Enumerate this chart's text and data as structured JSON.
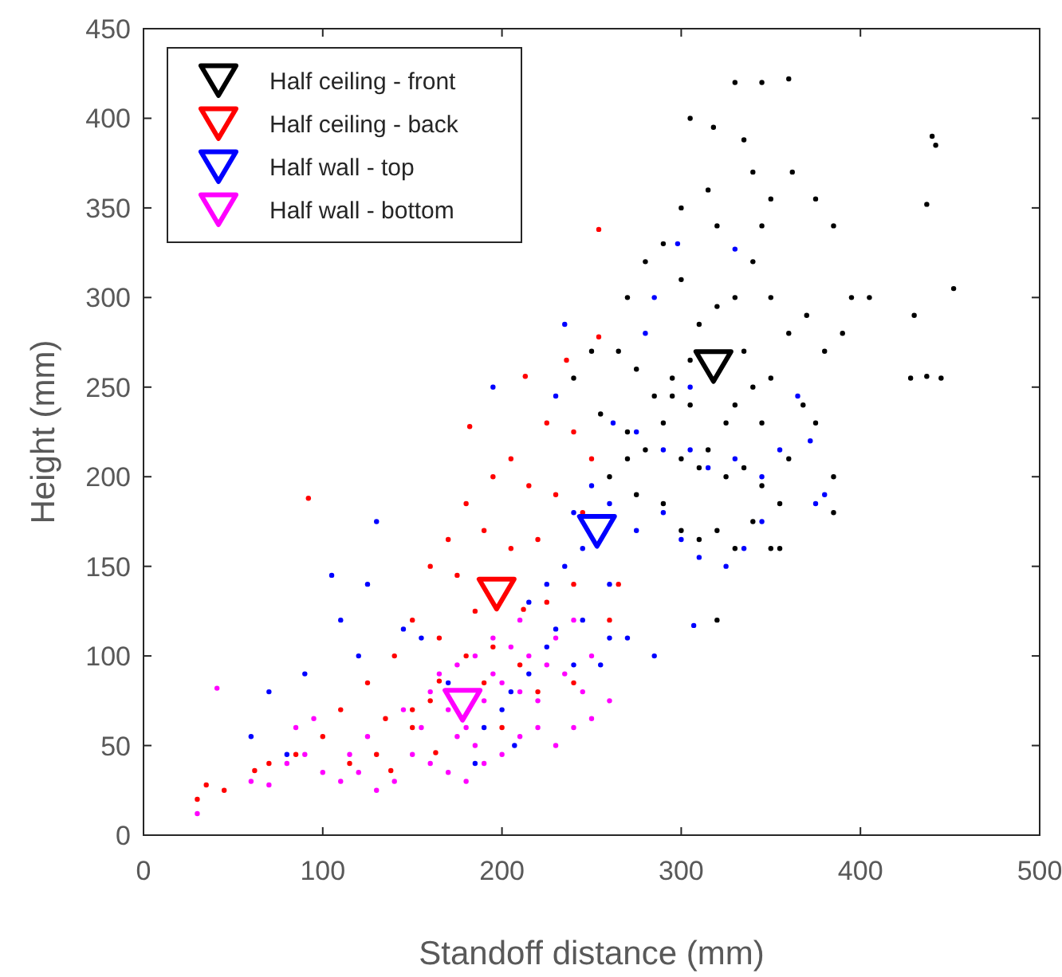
{
  "chart_data": {
    "type": "scatter",
    "xlabel": "Standoff distance (mm)",
    "ylabel": "Height (mm)",
    "xlim": [
      0,
      500
    ],
    "ylim": [
      0,
      450
    ],
    "xticks": [
      0,
      100,
      200,
      300,
      400,
      500
    ],
    "yticks": [
      0,
      50,
      100,
      150,
      200,
      250,
      300,
      350,
      400,
      450
    ],
    "grid": false,
    "legend": "top left",
    "series": [
      {
        "color": "#000000",
        "marker": "circle",
        "x": [
          330,
          345,
          360,
          318,
          335,
          305,
          340,
          362,
          315,
          350,
          375,
          300,
          320,
          345,
          385,
          395,
          405,
          440,
          442,
          437,
          452,
          430,
          437,
          428,
          445,
          270,
          280,
          290,
          300,
          310,
          320,
          330,
          340,
          350,
          360,
          370,
          380,
          390,
          265,
          275,
          285,
          295,
          305,
          330,
          340,
          350,
          368,
          375,
          255,
          270,
          280,
          290,
          300,
          315,
          325,
          335,
          345,
          355,
          360,
          385,
          385,
          260,
          275,
          290,
          300,
          310,
          320,
          330,
          340,
          350,
          355,
          320,
          270,
          240,
          250,
          295,
          305,
          335,
          345,
          310,
          325
        ],
        "values": [
          420,
          420,
          422,
          395,
          388,
          400,
          370,
          370,
          360,
          355,
          355,
          350,
          340,
          340,
          340,
          300,
          300,
          390,
          385,
          352,
          305,
          290,
          256,
          255,
          255,
          300,
          320,
          330,
          310,
          285,
          295,
          300,
          320,
          300,
          280,
          290,
          270,
          280,
          270,
          260,
          245,
          255,
          240,
          240,
          250,
          255,
          240,
          230,
          235,
          225,
          215,
          230,
          210,
          215,
          200,
          205,
          195,
          185,
          210,
          200,
          180,
          200,
          190,
          185,
          170,
          165,
          170,
          160,
          175,
          160,
          160,
          120,
          210,
          255,
          270,
          245,
          265,
          270,
          230,
          205,
          230
        ]
      },
      {
        "color": "#ff0000",
        "marker": "circle",
        "x": [
          254,
          254,
          236,
          213,
          182,
          92,
          225,
          240,
          250,
          205,
          195,
          215,
          230,
          245,
          180,
          170,
          190,
          205,
          220,
          160,
          175,
          185,
          212,
          225,
          240,
          150,
          165,
          180,
          195,
          210,
          220,
          140,
          125,
          110,
          135,
          150,
          160,
          165,
          190,
          100,
          85,
          70,
          62,
          45,
          35,
          30,
          115,
          130,
          240,
          260,
          265,
          150,
          200,
          138,
          163
        ],
        "values": [
          338,
          278,
          265,
          256,
          228,
          188,
          230,
          225,
          210,
          210,
          200,
          195,
          190,
          180,
          185,
          165,
          170,
          160,
          165,
          150,
          145,
          125,
          126,
          130,
          140,
          120,
          110,
          100,
          105,
          95,
          80,
          100,
          85,
          70,
          65,
          60,
          75,
          86,
          85,
          55,
          45,
          40,
          36,
          25,
          28,
          20,
          40,
          45,
          85,
          120,
          140,
          70,
          60,
          36,
          46
        ]
      },
      {
        "color": "#0000ff",
        "marker": "circle",
        "x": [
          195,
          230,
          235,
          298,
          330,
          305,
          280,
          285,
          262,
          275,
          290,
          305,
          315,
          330,
          345,
          355,
          365,
          372,
          380,
          375,
          345,
          335,
          325,
          310,
          300,
          290,
          275,
          260,
          250,
          240,
          245,
          235,
          225,
          215,
          230,
          245,
          260,
          255,
          240,
          225,
          215,
          205,
          200,
          190,
          207,
          170,
          155,
          145,
          125,
          105,
          130,
          110,
          120,
          90,
          70,
          60,
          80,
          185,
          270,
          285,
          260,
          307
        ],
        "values": [
          250,
          245,
          285,
          330,
          327,
          250,
          280,
          300,
          230,
          225,
          215,
          215,
          205,
          210,
          200,
          215,
          245,
          220,
          190,
          185,
          175,
          160,
          150,
          155,
          165,
          180,
          170,
          185,
          195,
          180,
          160,
          150,
          140,
          130,
          115,
          120,
          110,
          95,
          95,
          105,
          90,
          80,
          70,
          60,
          50,
          85,
          110,
          115,
          140,
          145,
          175,
          120,
          100,
          90,
          80,
          55,
          45,
          40,
          110,
          100,
          140,
          117
        ]
      },
      {
        "color": "#ff00ff",
        "marker": "circle",
        "x": [
          41,
          30,
          60,
          70,
          80,
          90,
          95,
          85,
          100,
          110,
          120,
          130,
          140,
          150,
          160,
          170,
          180,
          190,
          200,
          210,
          220,
          230,
          240,
          250,
          245,
          235,
          225,
          215,
          205,
          195,
          185,
          175,
          165,
          160,
          170,
          180,
          190,
          200,
          210,
          220,
          230,
          240,
          250,
          210,
          195,
          185,
          155,
          145,
          125,
          115,
          260,
          175
        ],
        "values": [
          82,
          12,
          30,
          28,
          40,
          45,
          65,
          60,
          35,
          30,
          35,
          25,
          30,
          45,
          40,
          35,
          30,
          40,
          45,
          55,
          60,
          50,
          60,
          65,
          80,
          90,
          95,
          100,
          105,
          110,
          100,
          95,
          90,
          80,
          70,
          60,
          75,
          85,
          80,
          75,
          110,
          120,
          100,
          120,
          90,
          50,
          60,
          70,
          55,
          45,
          75,
          55
        ]
      },
      {
        "name": "Half ceiling - front",
        "color": "#000000",
        "marker": "triangle",
        "x": [
          318
        ],
        "values": [
          262
        ]
      },
      {
        "name": "Half ceiling - back",
        "color": "#ff0000",
        "marker": "triangle",
        "x": [
          197
        ],
        "values": [
          135
        ]
      },
      {
        "name": "Half wall - top",
        "color": "#0000ff",
        "marker": "triangle",
        "x": [
          253
        ],
        "values": [
          170
        ]
      },
      {
        "name": "Half wall - bottom",
        "color": "#ff00ff",
        "marker": "triangle",
        "x": [
          178
        ],
        "values": [
          73
        ]
      }
    ]
  }
}
